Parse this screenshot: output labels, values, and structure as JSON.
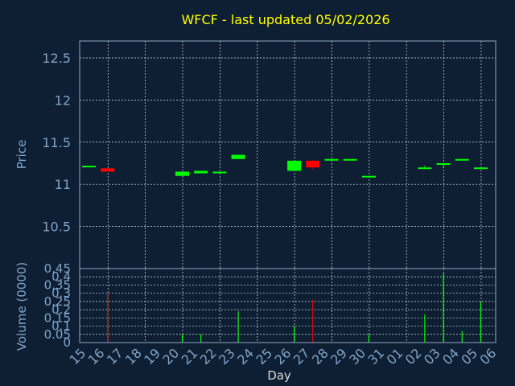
{
  "chart_data": [
    {
      "type": "candlestick",
      "title": "WFCF - last updated 05/02/2026",
      "ylabel": "Price",
      "ylim": [
        10.0,
        12.7
      ],
      "yticks": [
        10.5,
        11,
        11.5,
        12,
        12.5
      ],
      "ytick_labels": [
        "10.5",
        "11",
        "11.5",
        "12",
        "12.5"
      ],
      "x": [
        "15",
        "16",
        "17",
        "18",
        "19",
        "20",
        "21",
        "22",
        "23",
        "24",
        "25",
        "26",
        "27",
        "28",
        "29",
        "30",
        "31",
        "01",
        "02",
        "03",
        "04",
        "05",
        "06"
      ],
      "grid": true,
      "series": [
        {
          "day": "15",
          "open": 11.22,
          "close": 11.22,
          "high": 11.22,
          "low": 11.22
        },
        {
          "day": "16",
          "open": 11.19,
          "close": 11.15,
          "high": 11.19,
          "low": 11.15
        },
        {
          "day": "20",
          "open": 11.1,
          "close": 11.15,
          "high": 11.15,
          "low": 11.1
        },
        {
          "day": "21",
          "open": 11.13,
          "close": 11.16,
          "high": 11.16,
          "low": 11.13
        },
        {
          "day": "22",
          "open": 11.15,
          "close": 11.15,
          "high": 11.15,
          "low": 11.15
        },
        {
          "day": "23",
          "open": 11.3,
          "close": 11.35,
          "high": 11.35,
          "low": 11.3
        },
        {
          "day": "26",
          "open": 11.16,
          "close": 11.28,
          "high": 11.28,
          "low": 11.16
        },
        {
          "day": "27",
          "open": 11.28,
          "close": 11.2,
          "high": 11.28,
          "low": 11.18
        },
        {
          "day": "28",
          "open": 11.3,
          "close": 11.3,
          "high": 11.3,
          "low": 11.3
        },
        {
          "day": "29",
          "open": 11.3,
          "close": 11.3,
          "high": 11.3,
          "low": 11.3
        },
        {
          "day": "30",
          "open": 11.1,
          "close": 11.1,
          "high": 11.1,
          "low": 11.1
        },
        {
          "day": "02",
          "open": 11.2,
          "close": 11.2,
          "high": 11.22,
          "low": 11.2
        },
        {
          "day": "03",
          "open": 11.24,
          "close": 11.25,
          "high": 11.25,
          "low": 11.2
        },
        {
          "day": "04",
          "open": 11.3,
          "close": 11.3,
          "high": 11.3,
          "low": 11.3
        },
        {
          "day": "05",
          "open": 11.2,
          "close": 11.2,
          "high": 11.2,
          "low": 11.2
        }
      ],
      "colors": {
        "up": "#00ff00",
        "down": "#ff0000"
      }
    },
    {
      "type": "bar",
      "ylabel": "Volume (0000)",
      "xlabel": "Day",
      "ylim": [
        0,
        0.45
      ],
      "yticks": [
        0,
        0.05,
        0.1,
        0.15,
        0.2,
        0.25,
        0.3,
        0.35,
        0.4,
        0.45
      ],
      "ytick_labels": [
        "0",
        "0.05",
        "0.1",
        "0.15",
        "0.2",
        "0.25",
        "0.3",
        "0.35",
        "0.4",
        "0.45"
      ],
      "x": [
        "15",
        "16",
        "17",
        "18",
        "19",
        "20",
        "21",
        "22",
        "23",
        "24",
        "25",
        "26",
        "27",
        "28",
        "29",
        "30",
        "31",
        "01",
        "02",
        "03",
        "04",
        "05",
        "06"
      ],
      "grid": true,
      "series": [
        {
          "day": "16",
          "value": 0.31,
          "direction": "down"
        },
        {
          "day": "20",
          "value": 0.05,
          "direction": "up"
        },
        {
          "day": "21",
          "value": 0.05,
          "direction": "up"
        },
        {
          "day": "23",
          "value": 0.19,
          "direction": "up"
        },
        {
          "day": "26",
          "value": 0.1,
          "direction": "up"
        },
        {
          "day": "27",
          "value": 0.26,
          "direction": "down"
        },
        {
          "day": "30",
          "value": 0.05,
          "direction": "up"
        },
        {
          "day": "02",
          "value": 0.17,
          "direction": "up"
        },
        {
          "day": "03",
          "value": 0.42,
          "direction": "up"
        },
        {
          "day": "04",
          "value": 0.07,
          "direction": "up"
        },
        {
          "day": "05",
          "value": 0.25,
          "direction": "up"
        }
      ]
    }
  ]
}
